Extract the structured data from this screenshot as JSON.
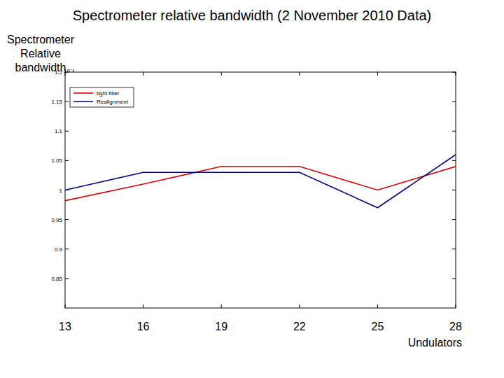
{
  "chart_data": {
    "type": "line",
    "title": "Spectrometer relative bandwidth (2 November 2010 Data)",
    "y_label": "Spectrometer Relative bandwidth",
    "x_label": "Undulators",
    "annotations": [
      "10⁻⁴"
    ],
    "x": [
      13,
      16,
      19,
      22,
      25,
      28
    ],
    "series": [
      {
        "name": "tight filter",
        "color": "#e00000",
        "values": [
          0.982,
          1.01,
          1.04,
          1.04,
          1.0,
          1.04
        ]
      },
      {
        "name": "Realignment",
        "color": "#00008b",
        "values": [
          1.0,
          1.03,
          1.03,
          1.03,
          0.97,
          1.06
        ]
      }
    ],
    "xlim": [
      13,
      28
    ],
    "xticks": [
      13,
      16,
      19,
      22,
      25,
      28
    ],
    "ylim": [
      0.8,
      1.2
    ],
    "yticks": [
      0.85,
      0.9,
      0.95,
      1,
      1.05,
      1.1,
      1.15,
      1.2
    ],
    "grid": false,
    "legend": "upper left"
  }
}
